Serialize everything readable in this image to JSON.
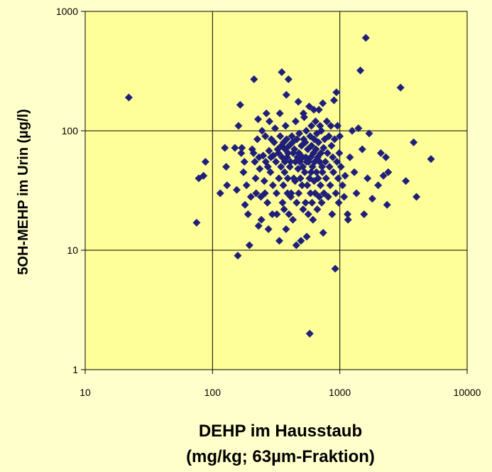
{
  "chart_data": {
    "type": "scatter",
    "xlabel_line1": "DEHP im Hausstaub",
    "xlabel_line2": "(mg/kg; 63µm-Fraktion)",
    "ylabel": "5OH-MEHP im Urin (µg/l)",
    "x_scale": "log",
    "y_scale": "log",
    "xlim": [
      10,
      10000
    ],
    "ylim": [
      1,
      1000
    ],
    "x_ticks": [
      10,
      100,
      1000,
      10000
    ],
    "y_ticks": [
      1,
      10,
      100,
      1000
    ],
    "x_tick_labels": [
      "10",
      "100",
      "1000",
      "10000"
    ],
    "y_tick_labels": [
      "1",
      "10",
      "100",
      "1000"
    ],
    "grid": true,
    "legend": "none",
    "colors": {
      "plot_bg": "#FFFF99",
      "page_bg": "#FFFFCC",
      "marker": "#1F1F7A"
    },
    "marker": "diamond",
    "points": [
      [
        22,
        190
      ],
      [
        75,
        17
      ],
      [
        78,
        40
      ],
      [
        85,
        42
      ],
      [
        88,
        55
      ],
      [
        115,
        30
      ],
      [
        125,
        72
      ],
      [
        128,
        50
      ],
      [
        130,
        35
      ],
      [
        150,
        72
      ],
      [
        155,
        32
      ],
      [
        158,
        9
      ],
      [
        160,
        110
      ],
      [
        165,
        165
      ],
      [
        168,
        65
      ],
      [
        170,
        72
      ],
      [
        175,
        45
      ],
      [
        178,
        55
      ],
      [
        180,
        24
      ],
      [
        185,
        35
      ],
      [
        190,
        20
      ],
      [
        195,
        11
      ],
      [
        200,
        28
      ],
      [
        205,
        70
      ],
      [
        210,
        65
      ],
      [
        212,
        270
      ],
      [
        215,
        55
      ],
      [
        218,
        40
      ],
      [
        220,
        30
      ],
      [
        225,
        85
      ],
      [
        228,
        125
      ],
      [
        230,
        16
      ],
      [
        232,
        60
      ],
      [
        235,
        48
      ],
      [
        240,
        28
      ],
      [
        242,
        18
      ],
      [
        245,
        100
      ],
      [
        250,
        62
      ],
      [
        255,
        38
      ],
      [
        258,
        30
      ],
      [
        260,
        90
      ],
      [
        262,
        55
      ],
      [
        265,
        140
      ],
      [
        270,
        25
      ],
      [
        272,
        50
      ],
      [
        275,
        15
      ],
      [
        278,
        68
      ],
      [
        280,
        120
      ],
      [
        285,
        45
      ],
      [
        288,
        60
      ],
      [
        290,
        85
      ],
      [
        295,
        20
      ],
      [
        298,
        35
      ],
      [
        300,
        62
      ],
      [
        305,
        80
      ],
      [
        310,
        105
      ],
      [
        315,
        55
      ],
      [
        318,
        30
      ],
      [
        320,
        20
      ],
      [
        325,
        70
      ],
      [
        330,
        65
      ],
      [
        332,
        40
      ],
      [
        335,
        12
      ],
      [
        338,
        140
      ],
      [
        340,
        90
      ],
      [
        345,
        50
      ],
      [
        348,
        75
      ],
      [
        350,
        310
      ],
      [
        352,
        60
      ],
      [
        355,
        25
      ],
      [
        360,
        35
      ],
      [
        362,
        80
      ],
      [
        365,
        22
      ],
      [
        368,
        45
      ],
      [
        370,
        55
      ],
      [
        372,
        70
      ],
      [
        375,
        110
      ],
      [
        378,
        15
      ],
      [
        380,
        200
      ],
      [
        382,
        85
      ],
      [
        385,
        60
      ],
      [
        388,
        30
      ],
      [
        390,
        40
      ],
      [
        392,
        65
      ],
      [
        395,
        270
      ],
      [
        398,
        20
      ],
      [
        400,
        75
      ],
      [
        405,
        50
      ],
      [
        410,
        55
      ],
      [
        412,
        28
      ],
      [
        415,
        30
      ],
      [
        420,
        90
      ],
      [
        425,
        80
      ],
      [
        428,
        18
      ],
      [
        430,
        65
      ],
      [
        435,
        40
      ],
      [
        440,
        70
      ],
      [
        445,
        38
      ],
      [
        448,
        55
      ],
      [
        450,
        120
      ],
      [
        455,
        11
      ],
      [
        458,
        25
      ],
      [
        460,
        85
      ],
      [
        465,
        60
      ],
      [
        470,
        48
      ],
      [
        472,
        175
      ],
      [
        475,
        30
      ],
      [
        478,
        65
      ],
      [
        480,
        95
      ],
      [
        485,
        55
      ],
      [
        490,
        40
      ],
      [
        495,
        12
      ],
      [
        500,
        75
      ],
      [
        505,
        35
      ],
      [
        510,
        60
      ],
      [
        512,
        50
      ],
      [
        515,
        22
      ],
      [
        518,
        140
      ],
      [
        520,
        85
      ],
      [
        525,
        130
      ],
      [
        530,
        45
      ],
      [
        535,
        80
      ],
      [
        538,
        25
      ],
      [
        540,
        60
      ],
      [
        545,
        100
      ],
      [
        548,
        55
      ],
      [
        550,
        13
      ],
      [
        555,
        35
      ],
      [
        560,
        70
      ],
      [
        565,
        20
      ],
      [
        570,
        55
      ],
      [
        575,
        160
      ],
      [
        578,
        40
      ],
      [
        580,
        2
      ],
      [
        585,
        90
      ],
      [
        588,
        30
      ],
      [
        590,
        60
      ],
      [
        595,
        45
      ],
      [
        598,
        110
      ],
      [
        600,
        75
      ],
      [
        605,
        25
      ],
      [
        610,
        50
      ],
      [
        615,
        18
      ],
      [
        620,
        65
      ],
      [
        625,
        150
      ],
      [
        628,
        38
      ],
      [
        630,
        85
      ],
      [
        635,
        55
      ],
      [
        640,
        30
      ],
      [
        645,
        120
      ],
      [
        650,
        70
      ],
      [
        655,
        45
      ],
      [
        660,
        95
      ],
      [
        665,
        22
      ],
      [
        670,
        60
      ],
      [
        675,
        40
      ],
      [
        680,
        80
      ],
      [
        685,
        150
      ],
      [
        690,
        28
      ],
      [
        695,
        55
      ],
      [
        700,
        110
      ],
      [
        705,
        35
      ],
      [
        710,
        65
      ],
      [
        715,
        100
      ],
      [
        720,
        25
      ],
      [
        725,
        50
      ],
      [
        730,
        45
      ],
      [
        735,
        170
      ],
      [
        740,
        14
      ],
      [
        745,
        72
      ],
      [
        750,
        30
      ],
      [
        760,
        85
      ],
      [
        770,
        55
      ],
      [
        780,
        40
      ],
      [
        790,
        120
      ],
      [
        800,
        65
      ],
      [
        810,
        28
      ],
      [
        820,
        90
      ],
      [
        830,
        50
      ],
      [
        840,
        35
      ],
      [
        850,
        110
      ],
      [
        860,
        75
      ],
      [
        870,
        20
      ],
      [
        880,
        60
      ],
      [
        890,
        45
      ],
      [
        900,
        180
      ],
      [
        910,
        85
      ],
      [
        920,
        7
      ],
      [
        930,
        30
      ],
      [
        940,
        210
      ],
      [
        950,
        55
      ],
      [
        960,
        110
      ],
      [
        970,
        40
      ],
      [
        980,
        25
      ],
      [
        990,
        65
      ],
      [
        1000,
        90
      ],
      [
        1020,
        50
      ],
      [
        1050,
        35
      ],
      [
        1080,
        28
      ],
      [
        1100,
        42
      ],
      [
        1150,
        20
      ],
      [
        1160,
        18
      ],
      [
        1200,
        60
      ],
      [
        1250,
        100
      ],
      [
        1300,
        45
      ],
      [
        1350,
        30
      ],
      [
        1400,
        105
      ],
      [
        1450,
        320
      ],
      [
        1500,
        70
      ],
      [
        1550,
        20
      ],
      [
        1600,
        600
      ],
      [
        1650,
        40
      ],
      [
        1700,
        95
      ],
      [
        1800,
        27
      ],
      [
        2000,
        35
      ],
      [
        2100,
        65
      ],
      [
        2200,
        42
      ],
      [
        2300,
        60
      ],
      [
        2350,
        24
      ],
      [
        2400,
        45
      ],
      [
        3000,
        230
      ],
      [
        3300,
        38
      ],
      [
        3800,
        80
      ],
      [
        4000,
        28
      ],
      [
        5200,
        58
      ]
    ]
  }
}
